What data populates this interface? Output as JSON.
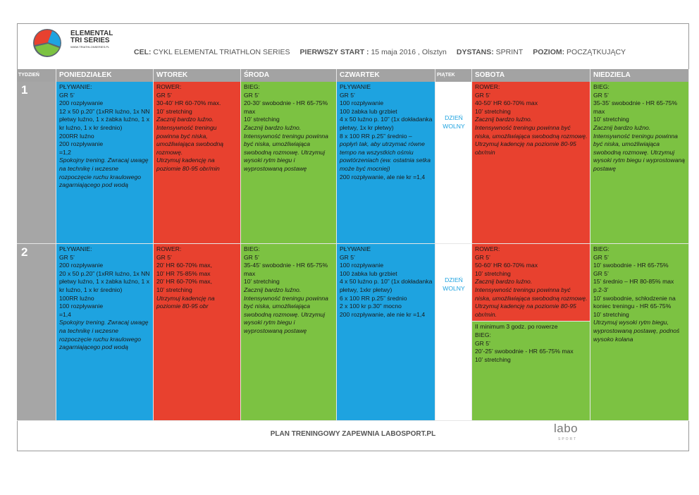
{
  "header": {
    "logo_title": "ELEMENTAL",
    "logo_subtitle": "TRI SERIES",
    "logo_url": "WWW.TRIATHLONSERIES.PL",
    "info": [
      {
        "label": "CEL:",
        "value": "CYKL ELEMENTAL TRIATHLON SERIES"
      },
      {
        "label": "PIERWSZY START :",
        "value": "15 maja 2016 , Olsztyn"
      },
      {
        "label": "DYSTANS:",
        "value": "SPRINT"
      },
      {
        "label": "POZIOM:",
        "value": "POCZĄTKUJĄCY"
      }
    ]
  },
  "table": {
    "columns": [
      "TYDZIEŃ",
      "PONIEDZIAŁEK",
      "WTOREK",
      "ŚRODA",
      "CZWARTEK",
      "PIĄTEK",
      "SOBOTA",
      "NIEDZIELA"
    ],
    "rows": [
      {
        "week": "1",
        "cells": [
          {
            "parts": [
              {
                "color": "#1ea3e0",
                "blocks": [
                  {
                    "text": "PŁYWANIE:"
                  },
                  {
                    "text": "GR 5’"
                  },
                  {
                    "text": "200 rozpływanie"
                  },
                  {
                    "text": "12 x 50 p.20” (1xRR luźno, 1x NN płetwy luźno, 1 x żabka luźno, 1 x kr luźno, 1 x kr średnio)"
                  },
                  {
                    "text": "200RR luźno"
                  },
                  {
                    "text": "200 rozpływanie"
                  },
                  {
                    "text": "=1,2"
                  },
                  {
                    "text": "Spokojny trening. Zwracaj uwagę na technikę i wczesne rozpoczęcie ruchu kraulowego zagarniającego pod wodą",
                    "italic": true
                  }
                ]
              }
            ]
          },
          {
            "parts": [
              {
                "color": "#e8412f",
                "blocks": [
                  {
                    "text": "ROWER:"
                  },
                  {
                    "text": "GR 5’"
                  },
                  {
                    "text": "30-40’ HR 60-70% max."
                  },
                  {
                    "text": "10’ stretching"
                  },
                  {
                    "text": "Zacznij bardzo luźno.",
                    "italic": true
                  },
                  {
                    "text": "Intensywność treningu powinna być niska, umożliwiająca swobodną rozmowę.",
                    "italic": true
                  },
                  {
                    "text": "Utrzymuj kadencję na poziomie 80-95 obr/min",
                    "italic": true
                  }
                ]
              }
            ]
          },
          {
            "parts": [
              {
                "color": "#7cc242",
                "blocks": [
                  {
                    "text": "BIEG:"
                  },
                  {
                    "text": "GR 5’"
                  },
                  {
                    "text": "20-30’ swobodnie - HR 65-75% max"
                  },
                  {
                    "text": "10’ stretching"
                  },
                  {
                    "text": "Zacznij bardzo luźno.",
                    "italic": true
                  },
                  {
                    "text": "Intensywność treningu powinna być niska, umożliwiająca swobodną rozmowę. Utrzymuj wysoki rytm biegu i wyprostowaną postawę",
                    "italic": true
                  }
                ]
              }
            ]
          },
          {
            "parts": [
              {
                "color": "#1ea3e0",
                "blocks": [
                  {
                    "text": "PŁYWANIE"
                  },
                  {
                    "text": "GR 5’"
                  },
                  {
                    "text": "100 rozpływanie"
                  },
                  {
                    "text": "100 żabka lub grzbiet"
                  },
                  {
                    "text": "4 x 50 luźno p. 10” (1x dokładanka płetwy, 1x kr płetwy)"
                  },
                  {
                    "text": "8 x 100 RR p.25” średnio –"
                  },
                  {
                    "text": "popłyń tak, aby utrzymać równe tempo na wszystkich ośmiu powtórzeniach (ew. ostatnia setka może być mocniej)",
                    "italic": true
                  },
                  {
                    "text": "200 rozpływanie, ale nie kr =1,4"
                  }
                ]
              }
            ]
          },
          {
            "parts": [
              {
                "color": "#ffffff",
                "text_color": "#1ea3e0",
                "align": "center",
                "blocks": [
                  {
                    "text": "DZIEŃ WOLNY"
                  }
                ]
              }
            ]
          },
          {
            "parts": [
              {
                "color": "#e8412f",
                "blocks": [
                  {
                    "text": "ROWER:"
                  },
                  {
                    "text": "GR 5’"
                  },
                  {
                    "text": "40-50’ HR 60-70% max"
                  },
                  {
                    "text": "10’ stretching"
                  },
                  {
                    "text": "Zacznij bardzo luźno.",
                    "italic": true
                  },
                  {
                    "text": "Intensywność treningu powinna być niska, umożliwiająca swobodną rozmowę.",
                    "italic": true
                  },
                  {
                    "text": "Utrzymuj kadencję na poziomie 80-95 obr/min",
                    "italic": true
                  }
                ]
              }
            ]
          },
          {
            "parts": [
              {
                "color": "#7cc242",
                "blocks": [
                  {
                    "text": "BIEG:"
                  },
                  {
                    "text": "GR 5’"
                  },
                  {
                    "text": "35-35’ swobodnie - HR 65-75% max"
                  },
                  {
                    "text": "10’ stretching"
                  },
                  {
                    "text": "Zacznij bardzo luźno.",
                    "italic": true
                  },
                  {
                    "text": "Intensywność treningu powinna być niska, umożliwiająca swobodną rozmowę. Utrzymuj wysoki rytm biegu i wyprostowaną postawę",
                    "italic": true
                  }
                ]
              }
            ]
          }
        ]
      },
      {
        "week": "2",
        "cells": [
          {
            "parts": [
              {
                "color": "#1ea3e0",
                "blocks": [
                  {
                    "text": "PŁYWANIE:"
                  },
                  {
                    "text": "GR 5’"
                  },
                  {
                    "text": "200 rozpływanie"
                  },
                  {
                    "text": "20 x 50 p.20” (1xRR luźno, 1x NN płetwy luźno, 1 x żabka luźno, 1 x kr luźno, 1 x kr średnio)"
                  },
                  {
                    "text": "100RR luźno"
                  },
                  {
                    "text": "100 rozpływanie"
                  },
                  {
                    "text": "=1,4"
                  },
                  {
                    "text": "Spokojny trening. Zwracaj uwagę na technikę i wczesne rozpoczęcie ruchu kraulowego zagarniającego pod wodą",
                    "italic": true
                  }
                ]
              }
            ]
          },
          {
            "parts": [
              {
                "color": "#e8412f",
                "blocks": [
                  {
                    "text": "ROWER:"
                  },
                  {
                    "text": "GR 5’"
                  },
                  {
                    "text": "20’ HR 60-70% max,"
                  },
                  {
                    "text": "10’ HR 75-85% max"
                  },
                  {
                    "text": "20’ HR 60-70% max,"
                  },
                  {
                    "text": "10’ stretching"
                  },
                  {
                    "text": "Utrzymuj kadencję na poziomie 80-95 obr",
                    "italic": true
                  }
                ]
              }
            ]
          },
          {
            "parts": [
              {
                "color": "#7cc242",
                "blocks": [
                  {
                    "text": "BIEG:"
                  },
                  {
                    "text": "GR 5’"
                  },
                  {
                    "text": "35-45’ swobodnie - HR 65-75% max"
                  },
                  {
                    "text": "10’ stretching"
                  },
                  {
                    "text": "Zacznij bardzo luźno.",
                    "italic": true
                  },
                  {
                    "text": "Intensywność treningu powinna być niska, umożliwiająca swobodną rozmowę. Utrzymuj wysoki rytm biegu i wyprostowaną postawę",
                    "italic": true
                  }
                ]
              }
            ]
          },
          {
            "parts": [
              {
                "color": "#1ea3e0",
                "blocks": [
                  {
                    "text": "PŁYWANIE"
                  },
                  {
                    "text": "GR 5’"
                  },
                  {
                    "text": "100 rozpływanie"
                  },
                  {
                    "text": "100 żabka lub grzbiet"
                  },
                  {
                    "text": "4 x 50 luźno p. 10” (1x dokładanka płetwy, 1xkr płetwy)"
                  },
                  {
                    "text": "6 x 100 RR p.25” średnio"
                  },
                  {
                    "text": "2 x 100 kr p.30” mocno"
                  },
                  {
                    "text": "200 rozpływanie, ale nie kr =1,4"
                  }
                ]
              }
            ]
          },
          {
            "parts": [
              {
                "color": "#ffffff",
                "text_color": "#1ea3e0",
                "align": "center",
                "blocks": [
                  {
                    "text": "DZIEŃ WOLNY"
                  }
                ]
              }
            ]
          },
          {
            "parts": [
              {
                "color": "#e8412f",
                "blocks": [
                  {
                    "text": "ROWER:"
                  },
                  {
                    "text": "GR 5’"
                  },
                  {
                    "text": "50-60’ HR 60-70% max"
                  },
                  {
                    "text": "10’ stretching"
                  },
                  {
                    "text": "Zacznij bardzo luźno.",
                    "italic": true
                  },
                  {
                    "text": "Intensywność treningu powinna być niska, umożliwiająca swobodną rozmowę.",
                    "italic": true
                  },
                  {
                    "text": "Utrzymuj kadencję na poziomie 80-95 obr/min.",
                    "italic": true
                  }
                ]
              },
              {
                "color": "#7cc242",
                "blocks": [
                  {
                    "text": "II minimum 3 godz. po rowerze"
                  },
                  {
                    "text": "BIEG:"
                  },
                  {
                    "text": "GR 5’"
                  },
                  {
                    "text": "20’-25’ swobodnie - HR 65-75% max"
                  },
                  {
                    "text": "10’ stretching"
                  }
                ]
              }
            ]
          },
          {
            "parts": [
              {
                "color": "#7cc242",
                "blocks": [
                  {
                    "text": "BIEG:"
                  },
                  {
                    "text": "GR 5’"
                  },
                  {
                    "text": "10’ swobodnie - HR 65-75%"
                  },
                  {
                    "text": "GR 5’"
                  },
                  {
                    "text": "15’ średnio – HR 80-85% max"
                  },
                  {
                    "text": "p.2-3’"
                  },
                  {
                    "text": "10’ swobodnie, schłodzenie na koniec treningu - HR 65-75%"
                  },
                  {
                    "text": "10’ stretching"
                  },
                  {
                    "text": "Utrzymuj wysoki rytm biegu, wyprostowaną postawę, podnoś wysoko kolana",
                    "italic": true
                  }
                ]
              }
            ]
          }
        ]
      }
    ]
  },
  "footer": {
    "text": "PLAN TRENINGOWY ZAPEWNIA LABOSPORT.PL",
    "logo": "labo",
    "logo_sub": "SPORT"
  }
}
